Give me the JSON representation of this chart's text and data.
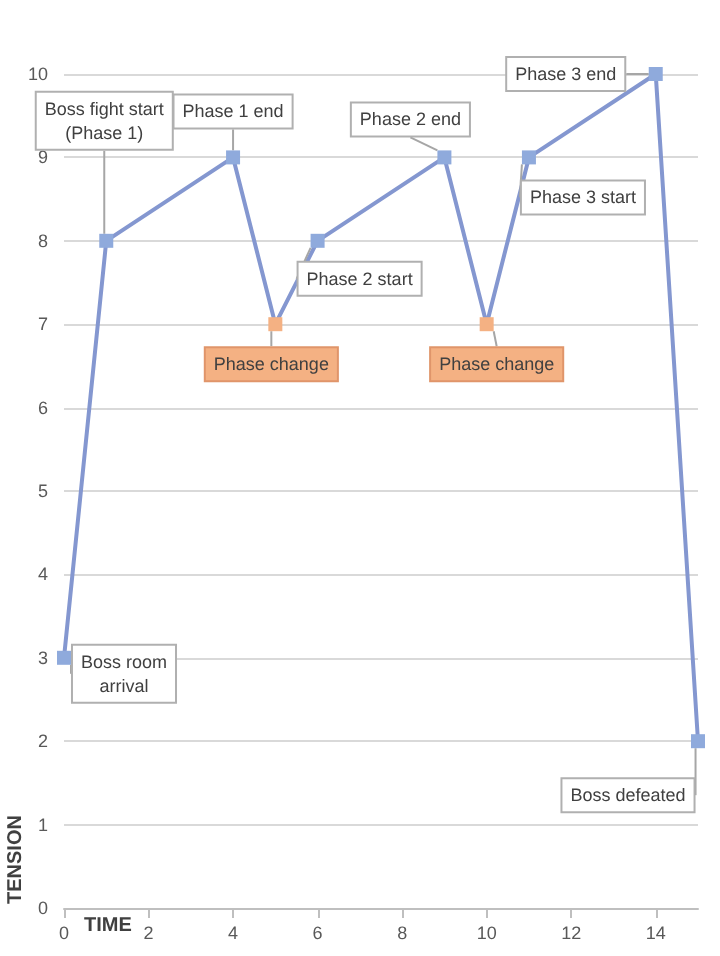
{
  "chart_data": {
    "type": "line",
    "xlabel": "TIME",
    "ylabel": "TENSION",
    "x": [
      0,
      1,
      4,
      5,
      6,
      9,
      10,
      11,
      14,
      15
    ],
    "values": [
      3,
      8,
      9,
      7,
      8,
      9,
      7,
      9,
      10,
      2
    ],
    "color": "#8497d0",
    "colors": [
      "#8faadc",
      "#8faadc",
      "#8faadc",
      "#f4b183",
      "#8faadc",
      "#8faadc",
      "#f4b183",
      "#8faadc",
      "#8faadc",
      "#8faadc"
    ],
    "marker": "square",
    "line_style": "solid",
    "grid": "y",
    "xlim": [
      0,
      15
    ],
    "xticks": [
      0,
      2,
      4,
      6,
      8,
      10,
      12,
      14
    ],
    "ylim": [
      0,
      10
    ],
    "yticks": [
      0,
      1,
      2,
      3,
      4,
      5,
      6,
      7,
      8,
      9,
      10
    ],
    "annotations": [
      {
        "text": "Boss room\narrival",
        "x": 0,
        "y": 3
      },
      {
        "text": "Boss fight start\n(Phase 1)",
        "x": 1,
        "y": 8
      },
      {
        "text": "Phase 1 end",
        "x": 4,
        "y": 9
      },
      {
        "text": "Phase change",
        "x": 5,
        "y": 7
      },
      {
        "text": "Phase 2 start",
        "x": 6,
        "y": 8
      },
      {
        "text": "Phase 2 end",
        "x": 9,
        "y": 9
      },
      {
        "text": "Phase change",
        "x": 10,
        "y": 7
      },
      {
        "text": "Phase 3 start",
        "x": 11,
        "y": 9
      },
      {
        "text": "Phase 3 end",
        "x": 14,
        "y": 10
      },
      {
        "text": "Boss defeated",
        "x": 15,
        "y": 2
      }
    ]
  }
}
